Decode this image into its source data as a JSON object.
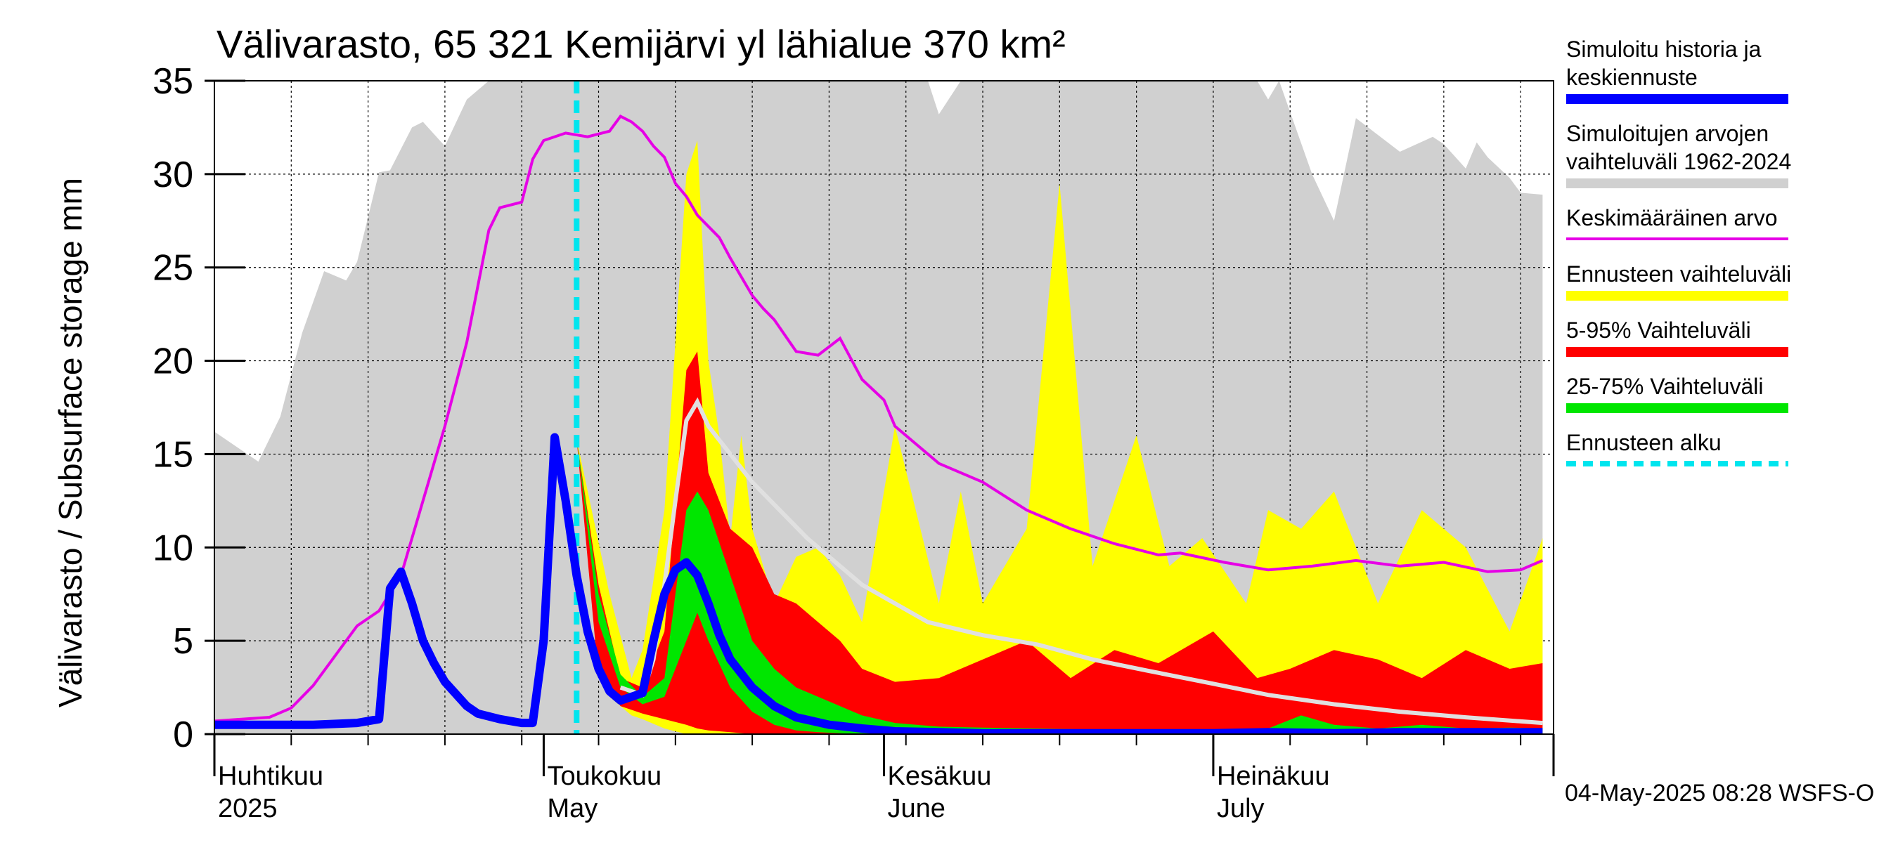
{
  "chart_data": {
    "type": "area",
    "title": "Välivarasto, 65 321 Kemijärvi yl lähialue 370 km²",
    "ylabel": "Välivarasto / Subsurface storage  mm",
    "ylim": [
      0,
      35
    ],
    "yticks": [
      0,
      5,
      10,
      15,
      20,
      25,
      30,
      35
    ],
    "x_start": "2025-04-01",
    "x_end": "2025-07-31",
    "forecast_start": "2025-05-04",
    "grid": true,
    "month_labels": [
      {
        "date": "2025-04-01",
        "fi": "Huhtikuu",
        "en": "2025"
      },
      {
        "date": "2025-05-01",
        "fi": "Toukokuu",
        "en": "May"
      },
      {
        "date": "2025-06-01",
        "fi": "Kesäkuu",
        "en": "June"
      },
      {
        "date": "2025-07-01",
        "fi": "Heinäkuu",
        "en": "July"
      }
    ],
    "hist_range": {
      "x": [
        "2025-04-01",
        "2025-04-04",
        "2025-04-05",
        "2025-04-07",
        "2025-04-09",
        "2025-04-11",
        "2025-04-13",
        "2025-04-14",
        "2025-04-16",
        "2025-04-17",
        "2025-04-19",
        "2025-04-20",
        "2025-04-22",
        "2025-04-24",
        "2025-04-26",
        "2025-04-27",
        "2025-05-04",
        "2025-05-12",
        "2025-05-25",
        "2025-05-29",
        "2025-06-01",
        "2025-06-05",
        "2025-06-06",
        "2025-06-08",
        "2025-06-15",
        "2025-06-30",
        "2025-07-05",
        "2025-07-06",
        "2025-07-07",
        "2025-07-10",
        "2025-07-12",
        "2025-07-14",
        "2025-07-18",
        "2025-07-21",
        "2025-07-22",
        "2025-07-24",
        "2025-07-25",
        "2025-07-26",
        "2025-07-28",
        "2025-07-29",
        "2025-07-31"
      ],
      "upper": [
        16.2,
        15.0,
        14.6,
        17.0,
        21.5,
        24.8,
        24.3,
        25.3,
        30.1,
        30.2,
        32.5,
        32.8,
        31.5,
        34.0,
        35,
        35,
        35,
        35,
        35,
        35,
        35,
        35,
        33.2,
        35,
        35,
        35,
        35,
        34.0,
        35,
        30.0,
        27.5,
        33.0,
        31.2,
        32.0,
        31.6,
        30.3,
        31.7,
        30.9,
        29.8,
        29.0,
        28.9
      ],
      "lower": [
        0,
        0,
        0,
        0,
        0,
        0,
        0,
        0,
        0,
        0,
        0,
        0,
        0,
        0,
        0,
        0,
        0,
        0,
        0,
        0,
        0,
        0,
        0,
        0,
        0,
        0,
        0,
        0,
        0,
        0,
        0,
        0,
        0,
        0,
        0,
        0,
        0,
        0,
        0,
        0,
        0
      ]
    },
    "mean": {
      "x": [
        "2025-04-01",
        "2025-04-06",
        "2025-04-08",
        "2025-04-10",
        "2025-04-14",
        "2025-04-16",
        "2025-04-18",
        "2025-04-20",
        "2025-04-22",
        "2025-04-24",
        "2025-04-26",
        "2025-04-27",
        "2025-04-29",
        "2025-04-30",
        "2025-05-01",
        "2025-05-03",
        "2025-05-05",
        "2025-05-07",
        "2025-05-08",
        "2025-05-09",
        "2025-05-10",
        "2025-05-11",
        "2025-05-12",
        "2025-05-13",
        "2025-05-14",
        "2025-05-15",
        "2025-05-16",
        "2025-05-17",
        "2025-05-18",
        "2025-05-19",
        "2025-05-20",
        "2025-05-21",
        "2025-05-22",
        "2025-05-24",
        "2025-05-26",
        "2025-05-28",
        "2025-05-30",
        "2025-06-01",
        "2025-06-02",
        "2025-06-04",
        "2025-06-06",
        "2025-06-10",
        "2025-06-14",
        "2025-06-18",
        "2025-06-22",
        "2025-06-26",
        "2025-06-28",
        "2025-07-02",
        "2025-07-06",
        "2025-07-10",
        "2025-07-14",
        "2025-07-18",
        "2025-07-22",
        "2025-07-26",
        "2025-07-29",
        "2025-07-31"
      ],
      "y": [
        0.7,
        0.9,
        1.4,
        2.6,
        5.8,
        6.6,
        8.5,
        12.5,
        16.5,
        21.0,
        27.0,
        28.2,
        28.5,
        30.8,
        31.8,
        32.2,
        32.0,
        32.3,
        33.1,
        32.8,
        32.3,
        31.5,
        30.9,
        29.5,
        28.8,
        27.8,
        27.2,
        26.6,
        25.5,
        24.5,
        23.5,
        22.8,
        22.2,
        20.5,
        20.3,
        21.2,
        19.0,
        17.9,
        16.5,
        15.5,
        14.5,
        13.5,
        12.0,
        11.0,
        10.2,
        9.6,
        9.7,
        9.2,
        8.8,
        9.0,
        9.3,
        9.0,
        9.2,
        8.7,
        8.8,
        9.3
      ]
    },
    "forecast_range": {
      "x": [
        "2025-05-04",
        "2025-05-07",
        "2025-05-09",
        "2025-05-10",
        "2025-05-12",
        "2025-05-14",
        "2025-05-15",
        "2025-05-16",
        "2025-05-17",
        "2025-05-18",
        "2025-05-19",
        "2025-05-20",
        "2025-05-22",
        "2025-05-24",
        "2025-05-26",
        "2025-05-28",
        "2025-05-30",
        "2025-06-02",
        "2025-06-06",
        "2025-06-08",
        "2025-06-10",
        "2025-06-14",
        "2025-06-17",
        "2025-06-20",
        "2025-06-24",
        "2025-06-27",
        "2025-06-30",
        "2025-07-04",
        "2025-07-06",
        "2025-07-09",
        "2025-07-12",
        "2025-07-16",
        "2025-07-20",
        "2025-07-24",
        "2025-07-28",
        "2025-07-31"
      ],
      "upper": [
        15.8,
        7.5,
        3.0,
        4.5,
        12.0,
        30.0,
        31.8,
        20.0,
        16.0,
        10.5,
        16.0,
        11.0,
        7.0,
        9.5,
        10.0,
        8.5,
        6.0,
        16.5,
        7.0,
        13.0,
        7.0,
        11.0,
        29.5,
        9.0,
        16.0,
        9.0,
        10.5,
        7.0,
        12.0,
        11.0,
        13.0,
        7.0,
        12.0,
        10.0,
        5.5,
        10.5
      ],
      "lower": [
        15.8,
        2.0,
        1.0,
        0.8,
        0.3,
        0,
        0,
        0,
        0,
        0,
        0,
        0,
        0,
        0,
        0,
        0,
        0,
        0,
        0,
        0,
        0,
        0,
        0,
        0,
        0,
        0,
        0,
        0,
        0,
        0,
        0,
        0,
        0,
        0,
        0,
        0
      ]
    },
    "p5_95": {
      "x": [
        "2025-05-04",
        "2025-05-06",
        "2025-05-08",
        "2025-05-10",
        "2025-05-12",
        "2025-05-14",
        "2025-05-15",
        "2025-05-16",
        "2025-05-18",
        "2025-05-20",
        "2025-05-22",
        "2025-05-24",
        "2025-05-26",
        "2025-05-28",
        "2025-05-30",
        "2025-06-02",
        "2025-06-06",
        "2025-06-10",
        "2025-06-14",
        "2025-06-18",
        "2025-06-22",
        "2025-06-26",
        "2025-07-01",
        "2025-07-05",
        "2025-07-08",
        "2025-07-12",
        "2025-07-16",
        "2025-07-20",
        "2025-07-24",
        "2025-07-28",
        "2025-07-31"
      ],
      "upper": [
        15.8,
        8.0,
        3.0,
        2.5,
        5.5,
        19.5,
        20.5,
        14.0,
        11.0,
        10.0,
        7.5,
        7.0,
        6.0,
        5.0,
        3.5,
        2.8,
        3.0,
        4.0,
        5.0,
        3.0,
        4.5,
        3.8,
        5.5,
        3.0,
        3.5,
        4.5,
        4.0,
        3.0,
        4.5,
        3.5,
        3.8
      ],
      "lower": [
        15.8,
        3.0,
        1.5,
        1.1,
        0.8,
        0.5,
        0.3,
        0.2,
        0.1,
        0,
        0,
        0,
        0,
        0,
        0,
        0,
        0,
        0,
        0,
        0,
        0,
        0,
        0,
        0,
        0,
        0,
        0,
        0,
        0,
        0,
        0
      ]
    },
    "p25_75": {
      "x": [
        "2025-05-04",
        "2025-05-06",
        "2025-05-08",
        "2025-05-10",
        "2025-05-12",
        "2025-05-14",
        "2025-05-15",
        "2025-05-16",
        "2025-05-18",
        "2025-05-20",
        "2025-05-22",
        "2025-05-24",
        "2025-05-26",
        "2025-05-28",
        "2025-05-30",
        "2025-06-02",
        "2025-06-06",
        "2025-06-10",
        "2025-06-15",
        "2025-06-20",
        "2025-06-25",
        "2025-07-01",
        "2025-07-06",
        "2025-07-09",
        "2025-07-12",
        "2025-07-16",
        "2025-07-20",
        "2025-07-24",
        "2025-07-28",
        "2025-07-31"
      ],
      "upper": [
        15.8,
        7.5,
        3.2,
        2.0,
        3.0,
        12.0,
        13.0,
        12.0,
        8.5,
        5.0,
        3.5,
        2.5,
        2.0,
        1.5,
        1.0,
        0.6,
        0.4,
        0.35,
        0.3,
        0.25,
        0.2,
        0.25,
        0.3,
        1.0,
        0.5,
        0.3,
        0.5,
        0.3,
        0.35,
        0.3
      ],
      "lower": [
        15.8,
        6.0,
        2.5,
        1.6,
        2.0,
        5.0,
        6.5,
        5.0,
        2.5,
        1.2,
        0.5,
        0.2,
        0.1,
        0.05,
        0,
        0,
        0,
        0,
        0,
        0,
        0,
        0,
        0,
        0,
        0,
        0,
        0,
        0,
        0,
        0
      ]
    },
    "median_forecast": {
      "x": [
        "2025-05-08",
        "2025-05-10",
        "2025-05-11",
        "2025-05-12",
        "2025-05-13",
        "2025-05-14",
        "2025-05-15",
        "2025-05-16",
        "2025-05-20",
        "2025-05-25",
        "2025-05-30",
        "2025-06-05",
        "2025-06-10",
        "2025-06-15",
        "2025-06-20",
        "2025-06-25",
        "2025-07-01",
        "2025-07-06",
        "2025-07-12",
        "2025-07-18",
        "2025-07-24",
        "2025-07-31"
      ],
      "y": [
        2.5,
        2.1,
        4.0,
        8.0,
        12.5,
        16.8,
        17.8,
        16.5,
        13.5,
        10.5,
        8.0,
        6.0,
        5.3,
        4.8,
        4.0,
        3.4,
        2.7,
        2.1,
        1.6,
        1.2,
        0.9,
        0.6
      ]
    },
    "simulated": {
      "x": [
        "2025-04-01",
        "2025-04-05",
        "2025-04-10",
        "2025-04-14",
        "2025-04-16",
        "2025-04-17",
        "2025-04-18",
        "2025-04-19",
        "2025-04-20",
        "2025-04-21",
        "2025-04-22",
        "2025-04-24",
        "2025-04-25",
        "2025-04-27",
        "2025-04-29",
        "2025-04-30",
        "2025-05-01",
        "2025-05-02",
        "2025-05-03",
        "2025-05-04",
        "2025-05-05",
        "2025-05-06",
        "2025-05-07",
        "2025-05-08",
        "2025-05-10",
        "2025-05-11",
        "2025-05-12",
        "2025-05-13",
        "2025-05-14",
        "2025-05-15",
        "2025-05-16",
        "2025-05-17",
        "2025-05-18",
        "2025-05-20",
        "2025-05-22",
        "2025-05-24",
        "2025-05-27",
        "2025-05-30",
        "2025-06-02",
        "2025-06-06",
        "2025-06-10",
        "2025-06-15",
        "2025-06-20",
        "2025-06-25",
        "2025-07-01",
        "2025-07-06",
        "2025-07-12",
        "2025-07-18",
        "2025-07-24",
        "2025-07-31"
      ],
      "y": [
        0.5,
        0.5,
        0.5,
        0.6,
        0.8,
        7.8,
        8.7,
        7.0,
        5.0,
        3.8,
        2.8,
        1.5,
        1.1,
        0.8,
        0.6,
        0.6,
        5.0,
        15.9,
        12.5,
        8.5,
        5.5,
        3.5,
        2.3,
        1.8,
        2.2,
        5.0,
        7.5,
        8.8,
        9.2,
        8.5,
        7.0,
        5.3,
        4.0,
        2.5,
        1.5,
        0.9,
        0.5,
        0.3,
        0.15,
        0.1,
        0.05,
        0.05,
        0.05,
        0.05,
        0.05,
        0.1,
        0.05,
        0.1,
        0.1,
        0.1
      ]
    },
    "legend": [
      {
        "text": [
          "Simuloitu historia ja",
          "keskiennuste"
        ],
        "color": "#0000ff",
        "kind": "line-thick"
      },
      {
        "text": [
          "Simuloitujen arvojen",
          "vaihteluväli 1962-2024"
        ],
        "color": "#d0d0d0",
        "kind": "band"
      },
      {
        "text": [
          "Keskimääräinen arvo"
        ],
        "color": "#e600e6",
        "kind": "line-thin"
      },
      {
        "text": [
          "Ennusteen vaihteluväli"
        ],
        "color": "#ffff00",
        "kind": "band"
      },
      {
        "text": [
          "5-95% Vaihteluväli"
        ],
        "color": "#ff0000",
        "kind": "band"
      },
      {
        "text": [
          "25-75% Vaihteluväli"
        ],
        "color": "#00e600",
        "kind": "band"
      },
      {
        "text": [
          "Ennusteen alku"
        ],
        "color": "#00e5ee",
        "kind": "dashed"
      }
    ],
    "colors": {
      "hist": "#d0d0d0",
      "mean": "#e600e6",
      "forecast": "#ffff00",
      "p5_95": "#ff0000",
      "p25_75": "#00e600",
      "median": "#e0e0e0",
      "simulated": "#0000ff",
      "forecast_start": "#00e5ee"
    }
  },
  "footer": {
    "timestamp": "04-May-2025 08:28 WSFS-O"
  }
}
